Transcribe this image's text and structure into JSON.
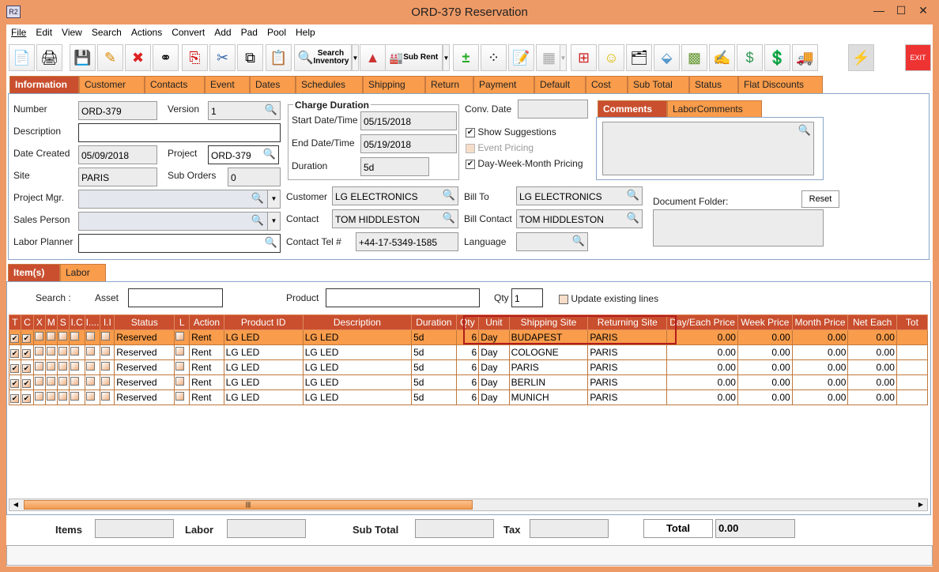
{
  "window": {
    "title": "ORD-379 Reservation",
    "app_icon": "R2",
    "minimize": "—",
    "maximize": "☐",
    "close": "✕"
  },
  "menu": [
    "File",
    "Edit",
    "View",
    "Search",
    "Actions",
    "Convert",
    "Add",
    "Pad",
    "Pool",
    "Help"
  ],
  "toolbar": {
    "search_inventory": "Search Inventory",
    "sub_rent": "Sub Rent",
    "exit": "EXIT"
  },
  "tabs": [
    "Information",
    "Customer",
    "Contacts",
    "Event",
    "Dates",
    "Schedules",
    "Shipping",
    "Return",
    "Payment",
    "Default",
    "Cost",
    "Sub Total",
    "Status",
    "Flat Discounts"
  ],
  "info": {
    "number_label": "Number",
    "number": "ORD-379",
    "version_label": "Version",
    "version": "1",
    "description_label": "Description",
    "description": "",
    "date_created_label": "Date Created",
    "date_created": "05/09/2018",
    "project_label": "Project",
    "project": "ORD-379",
    "site_label": "Site",
    "site": "PARIS",
    "sub_orders_label": "Sub Orders",
    "sub_orders": "0",
    "project_mgr_label": "Project Mgr.",
    "project_mgr": "",
    "sales_person_label": "Sales Person",
    "sales_person": "",
    "labor_planner_label": "Labor Planner",
    "labor_planner": "",
    "charge_duration_title": "Charge Duration",
    "start_label": "Start Date/Time",
    "start": "05/15/2018",
    "end_label": "End Date/Time",
    "end": "05/19/2018",
    "duration_label": "Duration",
    "duration": "5d",
    "conv_date_label": "Conv. Date",
    "conv_date": "",
    "show_suggestions": "Show Suggestions",
    "event_pricing": "Event Pricing",
    "dwm_pricing": "Day-Week-Month Pricing",
    "customer_label": "Customer",
    "customer": "LG ELECTRONICS",
    "contact_label": "Contact",
    "contact": "TOM HIDDLESTON",
    "contact_tel_label": "Contact Tel #",
    "contact_tel": "+44-17-5349-1585",
    "bill_to_label": "Bill To",
    "bill_to": "LG ELECTRONICS",
    "bill_contact_label": "Bill Contact",
    "bill_contact": "TOM HIDDLESTON",
    "language_label": "Language",
    "language": "",
    "comments_tab": "Comments",
    "labor_comments_tab": "LaborComments",
    "document_folder_label": "Document Folder:",
    "reset": "Reset"
  },
  "items_tabs": [
    "Item(s)",
    "Labor"
  ],
  "items": {
    "search_label": "Search :",
    "asset_label": "Asset",
    "asset": "",
    "product_label": "Product",
    "product": "",
    "qty_label": "Qty",
    "qty": "1",
    "update_label": "Update existing lines",
    "columns": [
      "T",
      "C",
      "X",
      "M",
      "S",
      "I.C",
      "I....",
      "I.I",
      "Status",
      "L",
      "Action",
      "Product ID",
      "Description",
      "Duration",
      "Qty",
      "Unit",
      "Shipping Site",
      "Returning Site",
      "Day/Each Price",
      "Week Price",
      "Month Price",
      "Net Each",
      "Tot"
    ],
    "rows": [
      {
        "T": true,
        "C": true,
        "status": "Reserved",
        "action": "Rent",
        "product_id": "LG LED",
        "description": "LG LED",
        "duration": "5d",
        "qty": "6",
        "unit": "Day",
        "shipping": "BUDAPEST",
        "returning": "PARIS",
        "day": "0.00",
        "week": "0.00",
        "month": "0.00",
        "net": "0.00",
        "selected": true
      },
      {
        "T": true,
        "C": true,
        "status": "Reserved",
        "action": "Rent",
        "product_id": "LG LED",
        "description": "LG LED",
        "duration": "5d",
        "qty": "6",
        "unit": "Day",
        "shipping": "COLOGNE",
        "returning": "PARIS",
        "day": "0.00",
        "week": "0.00",
        "month": "0.00",
        "net": "0.00"
      },
      {
        "T": true,
        "C": true,
        "status": "Reserved",
        "action": "Rent",
        "product_id": "LG LED",
        "description": "LG LED",
        "duration": "5d",
        "qty": "6",
        "unit": "Day",
        "shipping": "PARIS",
        "returning": "PARIS",
        "day": "0.00",
        "week": "0.00",
        "month": "0.00",
        "net": "0.00"
      },
      {
        "T": true,
        "C": true,
        "status": "Reserved",
        "action": "Rent",
        "product_id": "LG LED",
        "description": "LG LED",
        "duration": "5d",
        "qty": "6",
        "unit": "Day",
        "shipping": "BERLIN",
        "returning": "PARIS",
        "day": "0.00",
        "week": "0.00",
        "month": "0.00",
        "net": "0.00"
      },
      {
        "T": true,
        "C": true,
        "status": "Reserved",
        "action": "Rent",
        "product_id": "LG LED",
        "description": "LG LED",
        "duration": "5d",
        "qty": "6",
        "unit": "Day",
        "shipping": "MUNICH",
        "returning": "PARIS",
        "day": "0.00",
        "week": "0.00",
        "month": "0.00",
        "net": "0.00"
      }
    ]
  },
  "totals": {
    "items_label": "Items",
    "labor_label": "Labor",
    "sub_total_label": "Sub Total",
    "tax_label": "Tax",
    "total_label": "Total",
    "total": "0.00"
  },
  "colors": {
    "accent": "#c94f2e",
    "tab": "#f99c4b",
    "frame": "#ee9a66"
  }
}
